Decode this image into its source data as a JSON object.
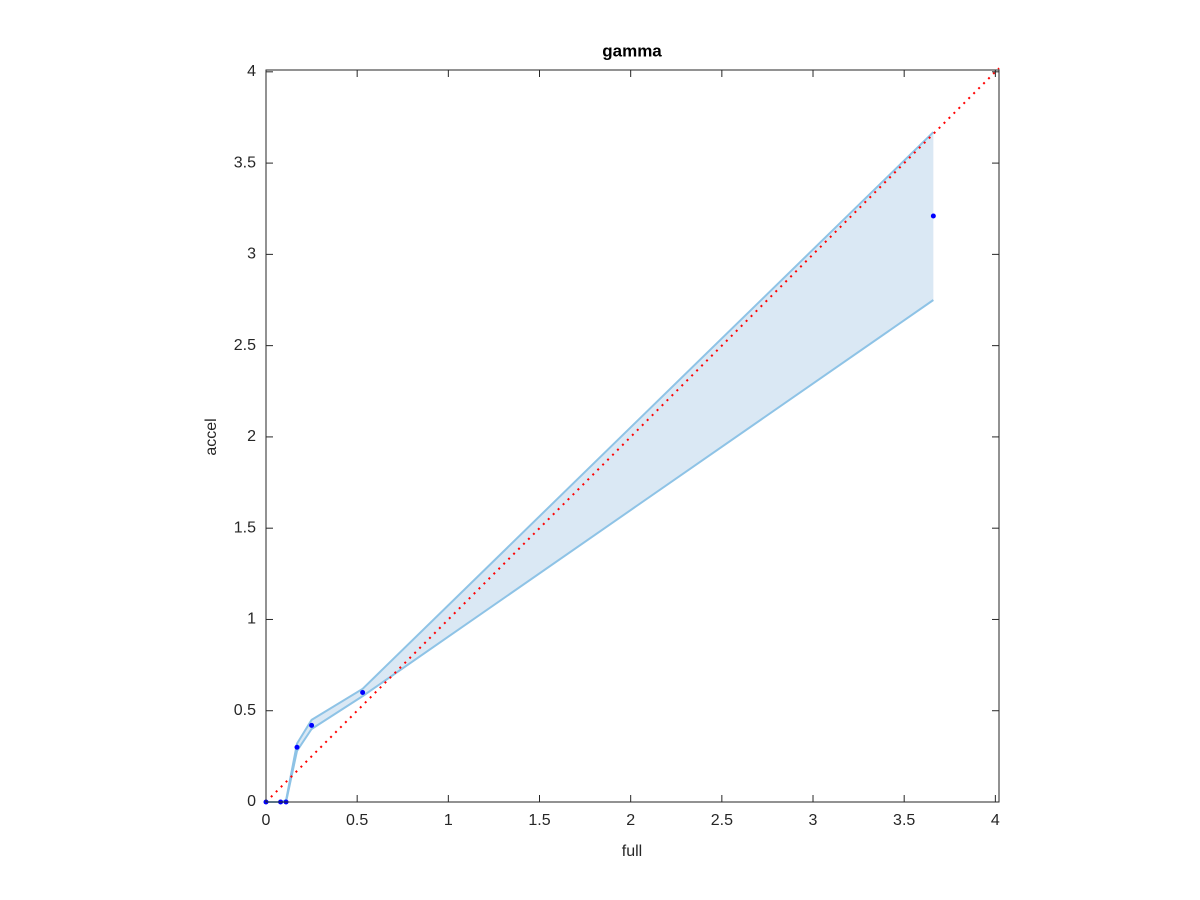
{
  "chart_data": {
    "type": "scatter",
    "title": "gamma",
    "x_label": "full",
    "y_label": "accel",
    "x": [
      0,
      0.08,
      0.11,
      0.17,
      0.25,
      0.53,
      3.66
    ],
    "values": [
      0,
      0,
      0,
      0.3,
      0.42,
      0.6,
      3.21
    ],
    "upper": [
      0,
      0,
      0.01,
      0.32,
      0.45,
      0.62,
      3.67
    ],
    "lower": [
      0,
      0,
      0,
      0.28,
      0.4,
      0.58,
      2.75
    ],
    "color": "#0000ff",
    "band_color": "#dae8f4",
    "band_edge_color": "#8ec3e6",
    "reference_line": {
      "x": [
        0,
        4.02
      ],
      "y": [
        0,
        4.02
      ],
      "color": "#ff0000"
    },
    "xlim": [
      0,
      4.02
    ],
    "ylim": [
      0,
      4.01
    ],
    "xticks": [
      0,
      0.5,
      1,
      1.5,
      2,
      2.5,
      3,
      3.5,
      4
    ],
    "yticks": [
      0,
      0.5,
      1,
      1.5,
      2,
      2.5,
      3,
      3.5,
      4
    ]
  }
}
